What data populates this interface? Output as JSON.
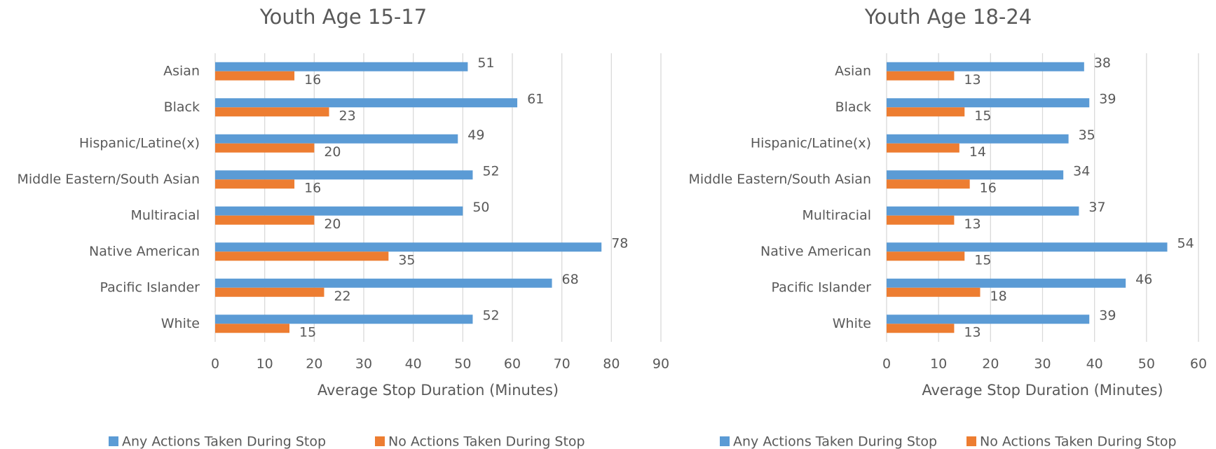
{
  "chart_data": [
    {
      "type": "hbar",
      "title": "Youth Age 15-17",
      "categories": [
        "Asian",
        "Black",
        "Hispanic/Latine(x)",
        "Middle Eastern/South Asian",
        "Multiracial",
        "Native American",
        "Pacific Islander",
        "White"
      ],
      "series": [
        {
          "name": "Any Actions Taken During Stop",
          "color": "#5b9bd5",
          "values": [
            51,
            61,
            49,
            52,
            50,
            78,
            68,
            52
          ]
        },
        {
          "name": "No Actions Taken During Stop",
          "color": "#ed7d31",
          "values": [
            16,
            23,
            20,
            16,
            20,
            35,
            22,
            15
          ]
        }
      ],
      "xlim": [
        0,
        90
      ],
      "xticks": [
        0,
        10,
        20,
        30,
        40,
        50,
        60,
        70,
        80,
        90
      ],
      "x_label": "Average Stop Duration (Minutes)",
      "grid": true,
      "legend": "bottom"
    },
    {
      "type": "hbar",
      "title": "Youth Age 18-24",
      "categories": [
        "Asian",
        "Black",
        "Hispanic/Latine(x)",
        "Middle Eastern/South Asian",
        "Multiracial",
        "Native American",
        "Pacific Islander",
        "White"
      ],
      "series": [
        {
          "name": "Any Actions Taken During Stop",
          "color": "#5b9bd5",
          "values": [
            38,
            39,
            35,
            34,
            37,
            54,
            46,
            39
          ]
        },
        {
          "name": "No Actions Taken During Stop",
          "color": "#ed7d31",
          "values": [
            13,
            15,
            14,
            16,
            13,
            15,
            18,
            13
          ]
        }
      ],
      "xlim": [
        0,
        60
      ],
      "xticks": [
        0,
        10,
        20,
        30,
        40,
        50,
        60
      ],
      "x_label": "Average Stop Duration (Minutes)",
      "grid": true,
      "legend": "bottom"
    }
  ]
}
